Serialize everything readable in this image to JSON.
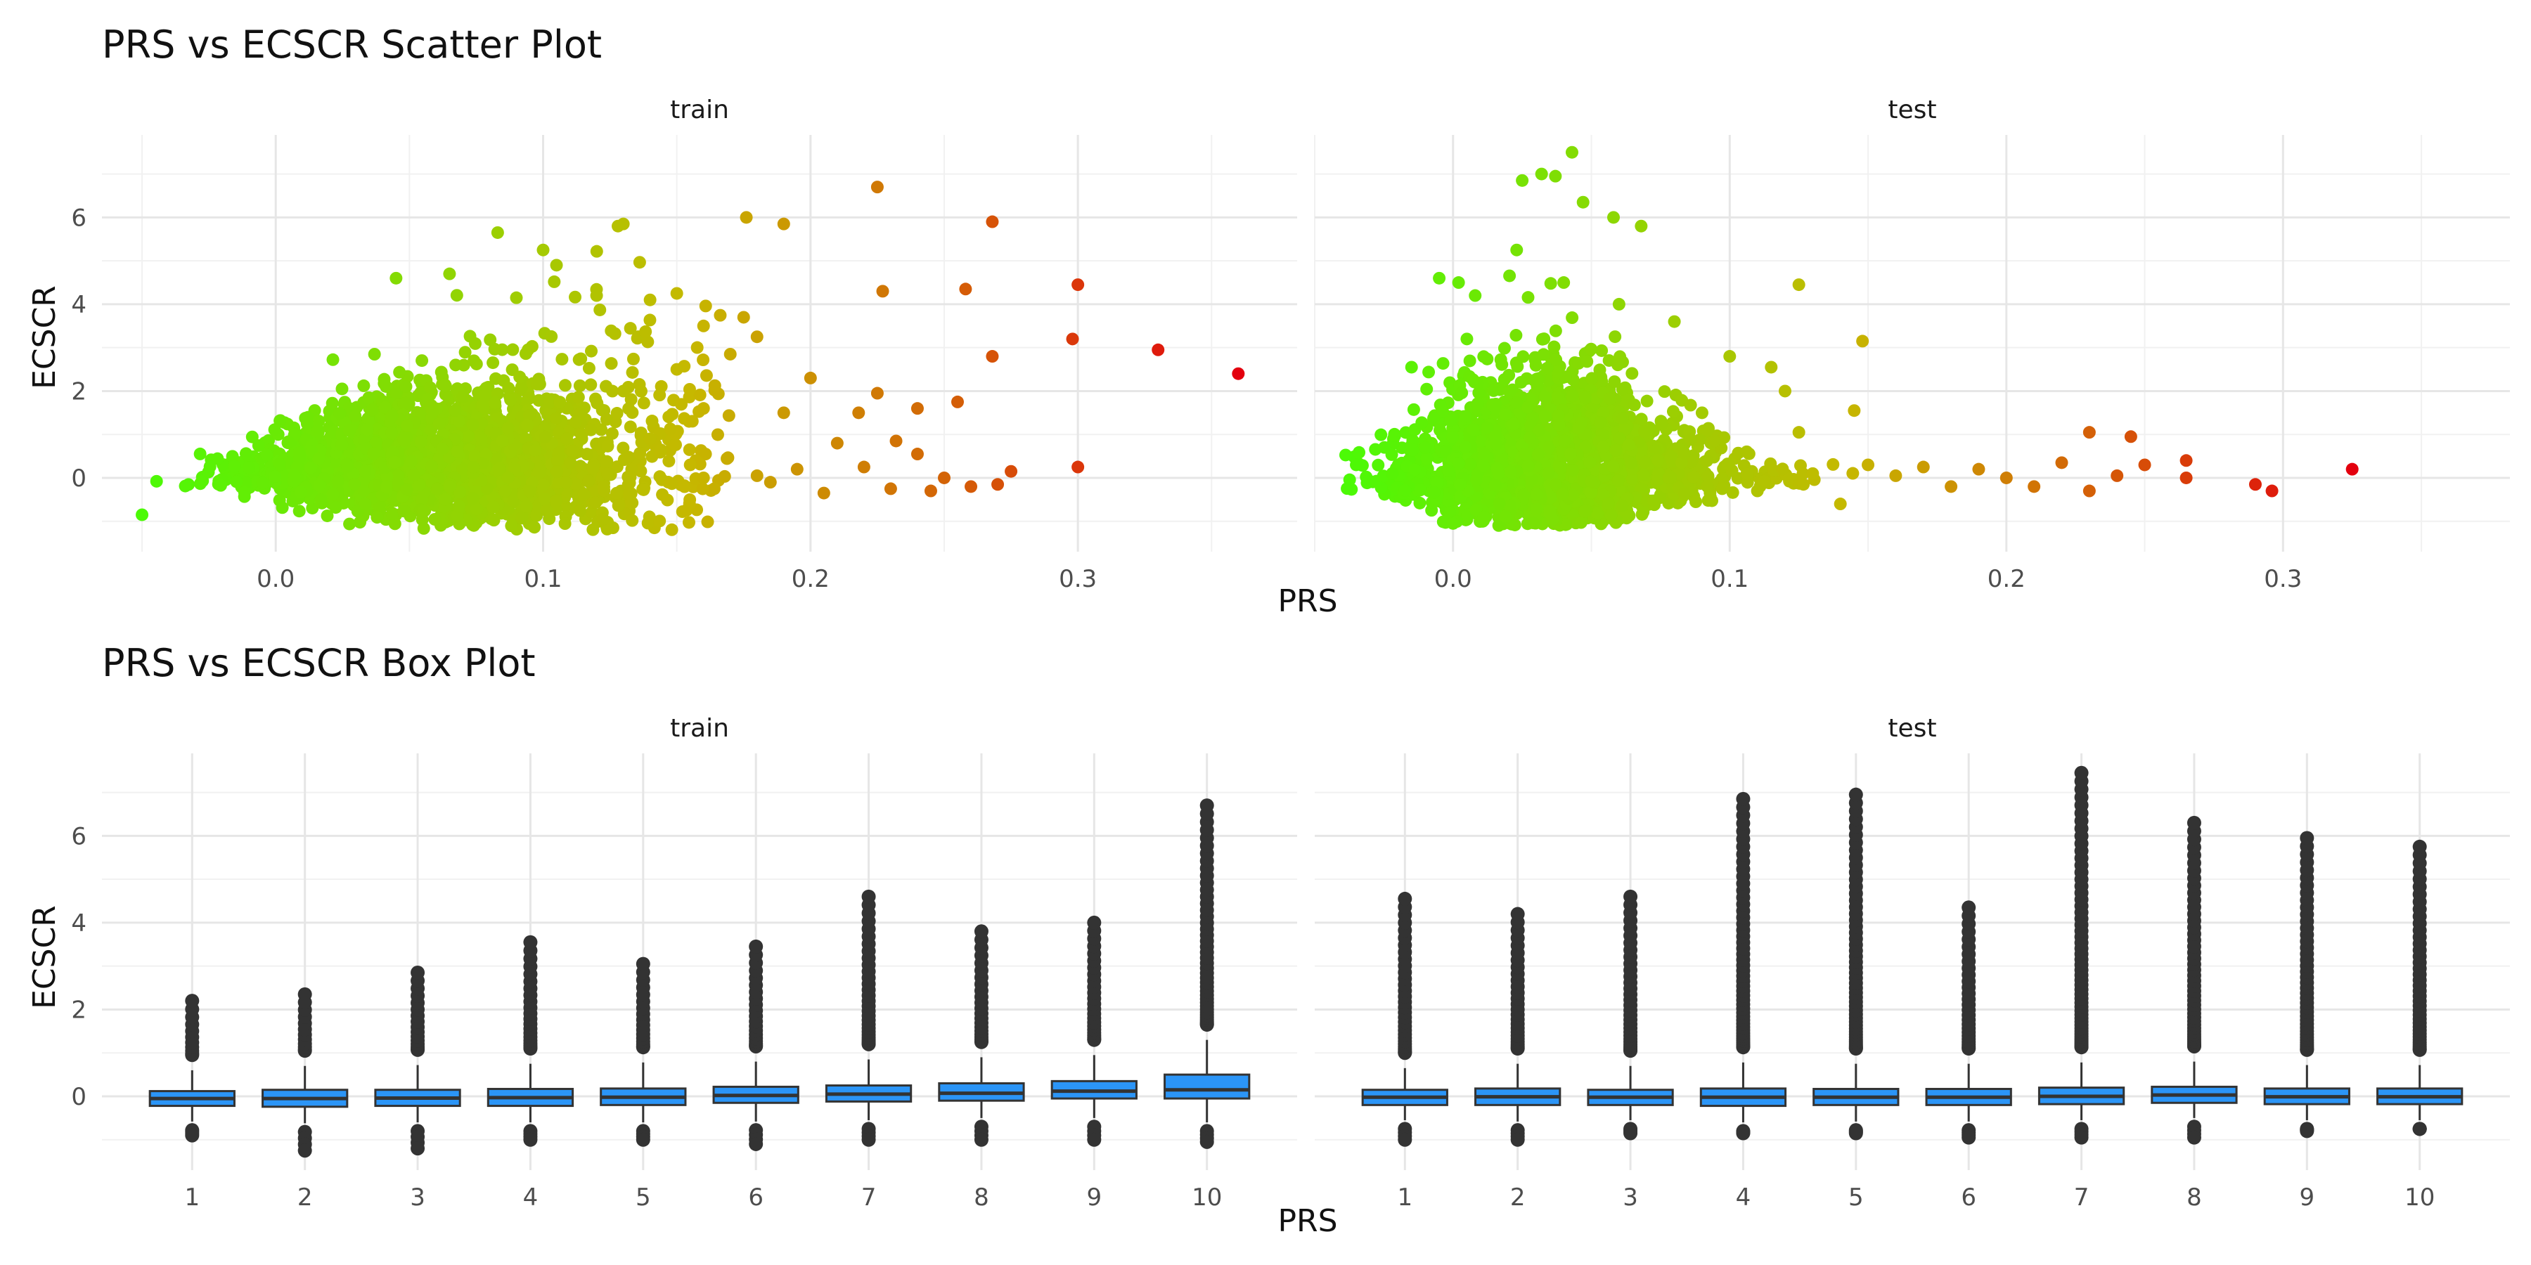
{
  "chart_data": [
    {
      "type": "scatter",
      "title": "PRS vs ECSCR Scatter Plot",
      "xlabel": "PRS",
      "ylabel": "ECSCR",
      "color_scale": {
        "low": "#4bfa06",
        "mid": "#c6b800",
        "high": "#e3000e"
      },
      "panels": [
        {
          "name": "train",
          "xlim": [
            -0.065,
            0.382
          ],
          "ylim": [
            -1.7,
            7.9
          ],
          "x_ticks": [
            "0.0",
            "0.1",
            "0.2",
            "0.3"
          ],
          "y_ticks": [
            "0",
            "2",
            "4",
            "6"
          ],
          "points": [
            [
              -0.05,
              -0.85
            ],
            [
              0.36,
              2.4
            ],
            [
              0.33,
              2.95
            ],
            [
              0.3,
              4.45
            ],
            [
              0.298,
              3.2
            ],
            [
              0.3,
              0.25
            ],
            [
              0.268,
              5.9
            ],
            [
              0.268,
              2.8
            ],
            [
              0.258,
              4.35
            ],
            [
              0.255,
              1.75
            ],
            [
              0.275,
              0.15
            ],
            [
              0.27,
              -0.15
            ],
            [
              0.225,
              6.7
            ],
            [
              0.227,
              4.3
            ],
            [
              0.225,
              1.95
            ],
            [
              0.24,
              1.6
            ],
            [
              0.218,
              1.5
            ],
            [
              0.2,
              2.3
            ],
            [
              0.176,
              6.0
            ],
            [
              0.19,
              5.85
            ],
            [
              0.175,
              3.7
            ],
            [
              0.17,
              2.85
            ],
            [
              0.18,
              3.25
            ],
            [
              0.19,
              1.5
            ],
            [
              0.21,
              0.8
            ],
            [
              0.232,
              0.85
            ],
            [
              0.24,
              0.55
            ],
            [
              0.22,
              0.25
            ],
            [
              0.25,
              0.0
            ],
            [
              0.26,
              -0.2
            ],
            [
              0.18,
              0.05
            ],
            [
              0.205,
              -0.35
            ],
            [
              0.195,
              0.2
            ],
            [
              0.185,
              -0.1
            ],
            [
              0.23,
              -0.25
            ],
            [
              0.245,
              -0.3
            ],
            [
              0.15,
              4.25
            ],
            [
              0.14,
              4.1
            ],
            [
              0.13,
              5.85
            ],
            [
              0.128,
              5.8
            ],
            [
              0.1,
              5.25
            ],
            [
              0.083,
              5.65
            ],
            [
              0.105,
              4.9
            ],
            [
              0.12,
              4.2
            ],
            [
              0.065,
              4.7
            ],
            [
              0.045,
              4.6
            ],
            [
              0.09,
              4.15
            ],
            [
              0.16,
              3.5
            ],
            [
              0.15,
              2.5
            ],
            [
              0.16,
              1.6
            ],
            [
              0.14,
              0.9
            ],
            [
              0.155,
              0.3
            ],
            [
              0.16,
              0.0
            ],
            [
              0.13,
              2.0
            ]
          ]
        },
        {
          "name": "test",
          "xlim": [
            -0.05,
            0.382
          ],
          "ylim": [
            -1.7,
            7.9
          ],
          "x_ticks": [
            "0.0",
            "0.1",
            "0.2",
            "0.3"
          ],
          "y_ticks": [
            "0",
            "2",
            "4",
            "6"
          ],
          "points": [
            [
              0.325,
              0.2
            ],
            [
              0.296,
              -0.3
            ],
            [
              0.29,
              -0.15
            ],
            [
              0.265,
              0.4
            ],
            [
              0.265,
              0.0
            ],
            [
              0.245,
              0.95
            ],
            [
              0.23,
              1.05
            ],
            [
              0.25,
              0.3
            ],
            [
              0.24,
              0.05
            ],
            [
              0.23,
              -0.3
            ],
            [
              0.22,
              0.35
            ],
            [
              0.21,
              -0.2
            ],
            [
              0.2,
              0.0
            ],
            [
              0.19,
              0.2
            ],
            [
              0.18,
              -0.2
            ],
            [
              0.17,
              0.25
            ],
            [
              0.16,
              0.05
            ],
            [
              0.15,
              0.3
            ],
            [
              0.148,
              3.15
            ],
            [
              0.125,
              4.45
            ],
            [
              0.145,
              1.55
            ],
            [
              0.125,
              1.05
            ],
            [
              0.12,
              2.0
            ],
            [
              0.115,
              2.55
            ],
            [
              0.043,
              7.5
            ],
            [
              0.025,
              6.85
            ],
            [
              0.032,
              7.0
            ],
            [
              0.037,
              6.95
            ],
            [
              0.047,
              6.35
            ],
            [
              0.058,
              6.0
            ],
            [
              0.068,
              5.8
            ],
            [
              0.023,
              5.25
            ],
            [
              -0.005,
              4.6
            ],
            [
              0.002,
              4.5
            ],
            [
              0.008,
              4.2
            ],
            [
              0.04,
              4.5
            ],
            [
              0.06,
              4.0
            ],
            [
              0.08,
              3.6
            ],
            [
              0.1,
              2.8
            ],
            [
              0.09,
              1.5
            ],
            [
              -0.015,
              2.55
            ],
            [
              0.005,
              3.2
            ],
            [
              0.13,
              0.1
            ],
            [
              0.14,
              -0.6
            ],
            [
              0.11,
              -0.3
            ],
            [
              0.0,
              -1.05
            ],
            [
              0.035,
              -0.8
            ],
            [
              -0.035,
              0.3
            ]
          ]
        }
      ]
    },
    {
      "type": "box",
      "title": "PRS vs ECSCR Box Plot",
      "xlabel": "PRS",
      "ylabel": "ECSCR",
      "box_color": "#2b95f7",
      "categories": [
        "1",
        "2",
        "3",
        "4",
        "5",
        "6",
        "7",
        "8",
        "9",
        "10"
      ],
      "y_ticks": [
        "0",
        "2",
        "4",
        "6"
      ],
      "ylim": [
        -1.7,
        7.9
      ],
      "panels": [
        {
          "name": "train",
          "boxes": [
            {
              "min": -0.58,
              "q1": -0.22,
              "median": -0.05,
              "q3": 0.12,
              "max": 0.6,
              "outliers_high_top": 2.2,
              "outliers_low_bottom": -0.9
            },
            {
              "min": -0.62,
              "q1": -0.24,
              "median": -0.05,
              "q3": 0.15,
              "max": 0.7,
              "outliers_high_top": 2.35,
              "outliers_low_bottom": -1.25
            },
            {
              "min": -0.6,
              "q1": -0.22,
              "median": -0.04,
              "q3": 0.15,
              "max": 0.72,
              "outliers_high_top": 2.85,
              "outliers_low_bottom": -1.2
            },
            {
              "min": -0.6,
              "q1": -0.22,
              "median": -0.03,
              "q3": 0.17,
              "max": 0.75,
              "outliers_high_top": 3.55,
              "outliers_low_bottom": -1.0
            },
            {
              "min": -0.6,
              "q1": -0.2,
              "median": -0.02,
              "q3": 0.18,
              "max": 0.78,
              "outliers_high_top": 3.05,
              "outliers_low_bottom": -1.0
            },
            {
              "min": -0.58,
              "q1": -0.15,
              "median": 0.02,
              "q3": 0.22,
              "max": 0.8,
              "outliers_high_top": 3.45,
              "outliers_low_bottom": -1.1
            },
            {
              "min": -0.55,
              "q1": -0.12,
              "median": 0.05,
              "q3": 0.25,
              "max": 0.85,
              "outliers_high_top": 4.6,
              "outliers_low_bottom": -1.0
            },
            {
              "min": -0.5,
              "q1": -0.1,
              "median": 0.07,
              "q3": 0.3,
              "max": 0.9,
              "outliers_high_top": 3.8,
              "outliers_low_bottom": -1.0
            },
            {
              "min": -0.5,
              "q1": -0.05,
              "median": 0.12,
              "q3": 0.35,
              "max": 0.95,
              "outliers_high_top": 4.0,
              "outliers_low_bottom": -1.0
            },
            {
              "min": -0.6,
              "q1": -0.05,
              "median": 0.15,
              "q3": 0.5,
              "max": 1.3,
              "outliers_high_top": 6.7,
              "outliers_low_bottom": -1.05
            }
          ]
        },
        {
          "name": "test",
          "boxes": [
            {
              "min": -0.55,
              "q1": -0.2,
              "median": -0.02,
              "q3": 0.15,
              "max": 0.65,
              "outliers_high_top": 4.55,
              "outliers_low_bottom": -1.0
            },
            {
              "min": -0.58,
              "q1": -0.2,
              "median": -0.01,
              "q3": 0.18,
              "max": 0.75,
              "outliers_high_top": 4.2,
              "outliers_low_bottom": -1.0
            },
            {
              "min": -0.55,
              "q1": -0.2,
              "median": -0.02,
              "q3": 0.15,
              "max": 0.7,
              "outliers_high_top": 4.6,
              "outliers_low_bottom": -0.85
            },
            {
              "min": -0.6,
              "q1": -0.22,
              "median": -0.02,
              "q3": 0.18,
              "max": 0.78,
              "outliers_high_top": 6.85,
              "outliers_low_bottom": -0.85
            },
            {
              "min": -0.58,
              "q1": -0.2,
              "median": -0.02,
              "q3": 0.17,
              "max": 0.75,
              "outliers_high_top": 6.95,
              "outliers_low_bottom": -0.85
            },
            {
              "min": -0.58,
              "q1": -0.2,
              "median": -0.02,
              "q3": 0.17,
              "max": 0.75,
              "outliers_high_top": 4.35,
              "outliers_low_bottom": -0.95
            },
            {
              "min": -0.55,
              "q1": -0.18,
              "median": 0.0,
              "q3": 0.2,
              "max": 0.78,
              "outliers_high_top": 7.45,
              "outliers_low_bottom": -0.95
            },
            {
              "min": -0.5,
              "q1": -0.15,
              "median": 0.03,
              "q3": 0.22,
              "max": 0.8,
              "outliers_high_top": 6.3,
              "outliers_low_bottom": -0.95
            },
            {
              "min": -0.55,
              "q1": -0.18,
              "median": -0.01,
              "q3": 0.18,
              "max": 0.72,
              "outliers_high_top": 5.95,
              "outliers_low_bottom": -0.8
            },
            {
              "min": -0.55,
              "q1": -0.18,
              "median": -0.01,
              "q3": 0.18,
              "max": 0.72,
              "outliers_high_top": 5.75,
              "outliers_low_bottom": -0.75
            }
          ]
        }
      ]
    }
  ]
}
